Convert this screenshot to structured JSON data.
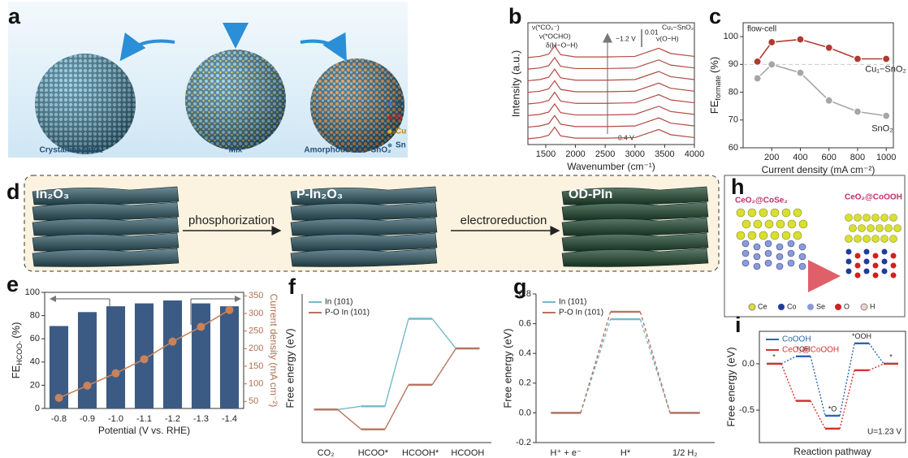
{
  "figure": {
    "panel_labels": [
      "a",
      "b",
      "c",
      "d",
      "e",
      "f",
      "g",
      "h",
      "i"
    ],
    "a": {
      "labels": [
        "Crystalline SnO₂",
        "Mix",
        "Amorphous Cu₁−SnO₂"
      ],
      "legend": [
        "H",
        "O",
        "Cu",
        "Sn"
      ]
    },
    "d": {
      "stages": [
        "In₂O₃",
        "P-In₂O₃",
        "OD-PIn"
      ],
      "steps": [
        "phosphorization",
        "electroreduction"
      ]
    },
    "h": {
      "labels": [
        "CeO₂@CoSe₂",
        "CeO₂@CoOOH"
      ],
      "legend": [
        "Ce",
        "Co",
        "Se",
        "O",
        "H"
      ]
    }
  },
  "chart_data": [
    {
      "type": "line",
      "ylabel": "Intensity (a.u.)",
      "xlabel": "Wavenumber (cm⁻¹)",
      "x": [
        1200,
        1400,
        1550,
        1650,
        1750,
        2000,
        2500,
        3000,
        3200,
        3400,
        3600,
        4000
      ],
      "xlim": [
        1200,
        4000
      ],
      "xticks": [
        1500,
        2000,
        2500,
        3000,
        3500,
        4000
      ],
      "ylim": [
        -0.5,
        10
      ],
      "annotations": [
        "ν(*CO₂⁻)",
        "ν(*OCHO)",
        "δ(H−O−H)",
        "−1.2 V",
        "0.01",
        "ν(O−H)",
        "Cu₁−SnO₂",
        "−0.4 V"
      ],
      "series": [
        {
          "color": "#b34a44",
          "values": [
            0,
            0.1,
            0.3,
            1,
            0.25,
            0.05,
            0.05,
            0.1,
            0.45,
            0.8,
            0.35,
            0.1
          ]
        },
        {
          "color": "#b34a44",
          "values": [
            1,
            1.1,
            1.3,
            2,
            1.25,
            1.05,
            1.05,
            1.1,
            1.45,
            1.8,
            1.35,
            1.1
          ]
        },
        {
          "color": "#b34a44",
          "values": [
            2,
            2.1,
            2.3,
            3,
            2.25,
            2.05,
            2.05,
            2.1,
            2.45,
            2.8,
            2.35,
            2.1
          ]
        },
        {
          "color": "#b34a44",
          "values": [
            3,
            3.1,
            3.3,
            4,
            3.25,
            3.05,
            3.05,
            3.1,
            3.45,
            3.8,
            3.35,
            3.1
          ]
        },
        {
          "color": "#b34a44",
          "values": [
            4,
            4.1,
            4.3,
            5,
            4.25,
            4.05,
            4.05,
            4.1,
            4.45,
            4.8,
            4.35,
            4.1
          ]
        },
        {
          "color": "#b34a44",
          "values": [
            5,
            5.1,
            5.3,
            6,
            5.25,
            5.05,
            5.05,
            5.1,
            5.45,
            5.8,
            5.35,
            5.1
          ]
        },
        {
          "color": "#b34a44",
          "values": [
            6,
            6.1,
            6.3,
            7,
            6.25,
            6.05,
            6.05,
            6.1,
            6.45,
            6.8,
            6.35,
            6.1
          ]
        },
        {
          "color": "#b34a44",
          "values": [
            7,
            7.1,
            7.3,
            8,
            7.25,
            7.05,
            7.05,
            7.1,
            7.45,
            7.8,
            7.35,
            7.1
          ]
        }
      ]
    },
    {
      "type": "line",
      "annotations": [
        "flow-cell"
      ],
      "ylabel": [
        "FE",
        "formate",
        "(%)"
      ],
      "xlabel": "Current density (mA cm⁻²)",
      "x": [
        100,
        200,
        400,
        600,
        800,
        1000
      ],
      "xlim": [
        0,
        1050
      ],
      "xticks": [
        200,
        400,
        600,
        800,
        1000
      ],
      "ylim": [
        60,
        105
      ],
      "yticks": [
        60,
        70,
        80,
        90,
        100
      ],
      "hline": 90,
      "series": [
        {
          "name": "Cu₁−SnO₂",
          "color": "#b03a30",
          "values": [
            91,
            98,
            99,
            96,
            92,
            92
          ]
        },
        {
          "name": "SnO₂",
          "color": "#a6a6a6",
          "values": [
            85,
            90,
            87,
            77,
            73,
            71.5
          ]
        }
      ]
    },
    {
      "type": "combo",
      "xlabel": "Potential (V vs. RHE)",
      "ylabel": [
        "FE",
        "HCOO-",
        "(%)"
      ],
      "y2label": "Current density (mA cm⁻²)",
      "categories": [
        "-0.8",
        "-0.9",
        "-1.0",
        "-1.1",
        "-1.2",
        "-1.3",
        "-1.4"
      ],
      "ylim": [
        0,
        100
      ],
      "yticks": [
        0,
        20,
        40,
        60,
        80,
        100
      ],
      "y2lim": [
        30,
        360
      ],
      "y2ticks": [
        50,
        100,
        150,
        200,
        250,
        300,
        350
      ],
      "series": [
        {
          "color": "#3b5b84",
          "values": [
            71,
            83,
            88,
            90.5,
            93,
            90.5,
            88
          ]
        },
        {
          "color": "#c9825a",
          "axis": "y2",
          "values": [
            60,
            95,
            130,
            170,
            220,
            262,
            310
          ]
        }
      ]
    },
    {
      "type": "step",
      "ylabel": "Free energy (eV)",
      "categories": [
        "CO₂",
        "HCOO*",
        "HCOOH*",
        "HCOOH"
      ],
      "ylim": [
        -0.2,
        0.7
      ],
      "legend": "upper left",
      "connector": "solid",
      "series": [
        {
          "name": "In (101)",
          "color": "#74b9c9",
          "values": [
            0,
            0.02,
            0.55,
            0.37
          ]
        },
        {
          "name": "P-O In (101)",
          "color": "#b8735f",
          "values": [
            0,
            -0.12,
            0.15,
            0.37
          ]
        }
      ]
    },
    {
      "type": "step",
      "ylabel": "Free energy (eV)",
      "categories": [
        "H⁺ + e⁻",
        "H*",
        "1/2 H₂"
      ],
      "ylim": [
        -0.2,
        0.8
      ],
      "yticks": [
        -0.2,
        {
          "value": 0,
          "label": "0.0"
        },
        0.2,
        0.4,
        0.6,
        0.8
      ],
      "legend": "upper left",
      "connector": "dashed",
      "series": [
        {
          "name": "In (101)",
          "color": "#74b9c9",
          "values": [
            0,
            0.63,
            0
          ]
        },
        {
          "name": "P-O In (101)",
          "color": "#b8735f",
          "values": [
            0,
            0.68,
            0
          ]
        }
      ]
    },
    {
      "type": "step",
      "ylabel": "Free energy (eV)",
      "xlabel": "Reaction pathway",
      "annotations": [
        "U=1.23 V"
      ],
      "categories": [
        "*",
        "*OH",
        "*O",
        "*OOH",
        "*"
      ],
      "ylim": [
        -0.85,
        0.35
      ],
      "yticks": [
        {
          "value": 0,
          "label": "0.0"
        },
        -0.5
      ],
      "legend": "upper left",
      "connector": "dotted",
      "series": [
        {
          "name": "CoOOH",
          "color": "#2a64b4",
          "values": [
            0,
            0.08,
            -0.56,
            0.22,
            0
          ]
        },
        {
          "name": "CeO₂@CoOOH",
          "color": "#d8322c",
          "values": [
            0,
            -0.4,
            -0.7,
            -0.07,
            0
          ]
        }
      ]
    }
  ]
}
